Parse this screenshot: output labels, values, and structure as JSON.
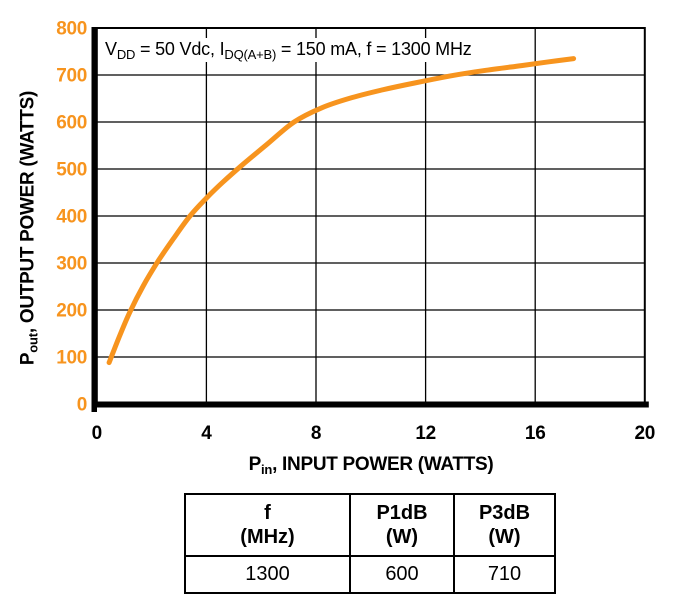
{
  "figure": {
    "annotation_parts": [
      {
        "t": "V"
      },
      {
        "t": "DD",
        "sub": true
      },
      {
        "t": " = 50 Vdc, "
      },
      {
        "t": "I"
      },
      {
        "t": "DQ(A+B)",
        "sub": true
      },
      {
        "t": " = 150 mA, f = 1300 MHz"
      }
    ],
    "xlabel_parts": [
      {
        "t": "P"
      },
      {
        "t": "in",
        "sub": true
      },
      {
        "t": ", INPUT POWER (WATTS)"
      }
    ],
    "ylabel_parts": [
      {
        "t": "P"
      },
      {
        "t": "out",
        "sub": true
      },
      {
        "t": ", OUTPUT POWER (WATTS)"
      }
    ]
  },
  "chart_data": {
    "type": "line",
    "annotation": "VDD = 50 Vdc, IDQ(A+B) = 150 mA, f = 1300 MHz",
    "xlabel": "Pin, INPUT POWER (WATTS)",
    "ylabel": "Pout, OUTPUT POWER (WATTS)",
    "xlim": [
      0,
      20
    ],
    "ylim": [
      0,
      800
    ],
    "xticks": [
      0,
      4,
      8,
      12,
      16,
      20
    ],
    "yticks": [
      0,
      100,
      200,
      300,
      400,
      500,
      600,
      700,
      800
    ],
    "grid": true,
    "legend_position": "none",
    "series": [
      {
        "name": "output-power-curve",
        "x": [
          0.45,
          0.8,
          1.2,
          1.7,
          2.25,
          2.8,
          3.4,
          4.0,
          4.6,
          5.3,
          6.2,
          7.2,
          8.2,
          9.2,
          10.4,
          11.6,
          12.9,
          14.2,
          15.5,
          16.5,
          17.4
        ],
        "y": [
          88,
          140,
          195,
          252,
          305,
          352,
          400,
          438,
          472,
          508,
          552,
          600,
          630,
          650,
          668,
          683,
          698,
          710,
          720,
          728,
          735
        ]
      }
    ],
    "colors": {
      "curve": "#F7941E",
      "y_axis_text": "#F7941E",
      "x_axis_text": "#000000",
      "grid": "#000000",
      "axis": "#000000"
    }
  },
  "table": {
    "columns": [
      {
        "line1": "f",
        "line2": "(MHz)"
      },
      {
        "line1": "P1dB",
        "line2": "(W)"
      },
      {
        "line1": "P3dB",
        "line2": "(W)"
      }
    ],
    "rows": [
      [
        "1300",
        "600",
        "710"
      ]
    ]
  }
}
